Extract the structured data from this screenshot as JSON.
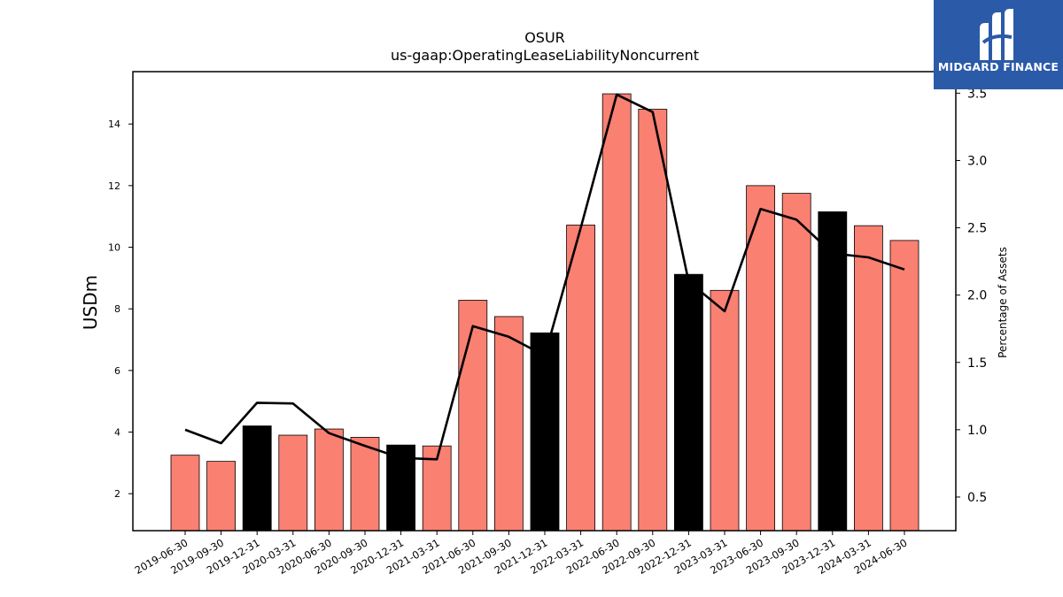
{
  "chart_data": {
    "type": "bar+line",
    "title": "OSUR",
    "subtitle": "us-gaap:OperatingLeaseLiabilityNoncurrent",
    "ylabel": "USDm",
    "y2label": "Percentage of Assets",
    "ylim": [
      0.8,
      15.7
    ],
    "y2lim": [
      0.25,
      3.66
    ],
    "yticks": [
      2,
      4,
      6,
      8,
      10,
      12,
      14
    ],
    "y2ticks": [
      0.5,
      1.0,
      1.5,
      2.0,
      2.5,
      3.0,
      3.5
    ],
    "categories": [
      "2019-06-30",
      "2019-09-30",
      "2019-12-31",
      "2020-03-31",
      "2020-06-30",
      "2020-09-30",
      "2020-12-31",
      "2021-03-31",
      "2021-06-30",
      "2021-09-30",
      "2021-12-31",
      "2022-03-31",
      "2022-06-30",
      "2022-09-30",
      "2022-12-31",
      "2023-03-31",
      "2023-06-30",
      "2023-09-30",
      "2023-12-31",
      "2024-03-31",
      "2024-06-30"
    ],
    "series": [
      {
        "type": "bar",
        "axis": "left",
        "values": [
          3.25,
          3.05,
          4.2,
          3.9,
          4.1,
          3.83,
          3.58,
          3.55,
          8.28,
          7.75,
          7.22,
          10.72,
          14.98,
          14.48,
          9.12,
          8.6,
          12.0,
          11.75,
          11.15,
          10.7,
          10.22
        ],
        "colors": [
          "#fa8072",
          "#fa8072",
          "#000000",
          "#fa8072",
          "#fa8072",
          "#fa8072",
          "#000000",
          "#fa8072",
          "#fa8072",
          "#fa8072",
          "#000000",
          "#fa8072",
          "#fa8072",
          "#fa8072",
          "#000000",
          "#fa8072",
          "#fa8072",
          "#fa8072",
          "#000000",
          "#fa8072",
          "#fa8072"
        ]
      },
      {
        "type": "line",
        "axis": "right",
        "color": "#000000",
        "values": [
          1.0,
          0.9,
          1.2,
          1.195,
          0.975,
          0.88,
          0.79,
          0.78,
          1.77,
          1.69,
          1.55,
          2.5,
          3.49,
          3.36,
          2.1,
          1.88,
          2.64,
          2.56,
          2.31,
          2.28,
          2.19
        ]
      }
    ],
    "grid": false,
    "legend": "none"
  },
  "logo": {
    "text": "MIDGARD FINANCE",
    "bg": "#2b5aa8"
  }
}
